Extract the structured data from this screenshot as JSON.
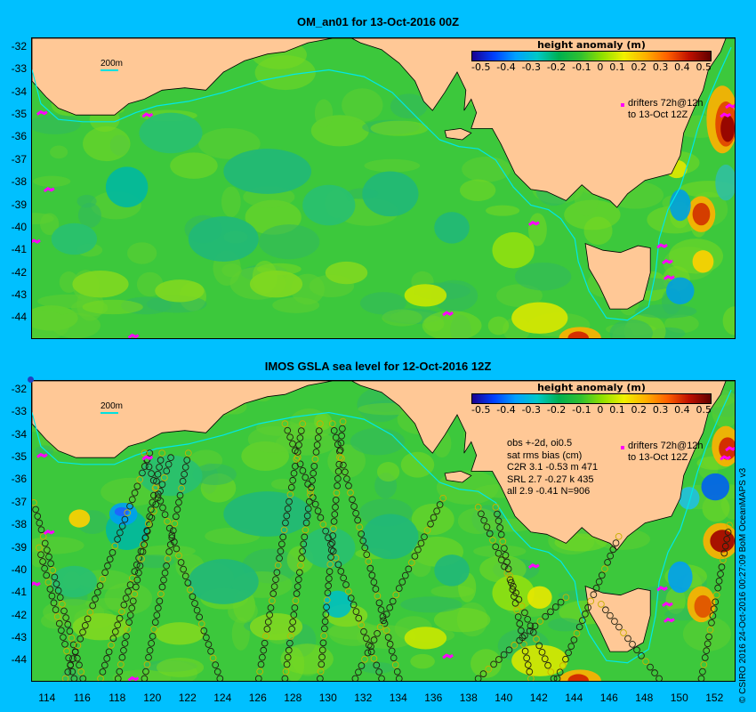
{
  "panels": [
    {
      "title": "OM_an01 for 13-Oct-2016 00Z",
      "has_tracks": false
    },
    {
      "title": "IMOS GSLA sea level  for 12-Oct-2016 12Z",
      "has_tracks": true,
      "stats": {
        "header1": "obs +-2d, oi0.5",
        "header2": "sat rms bias (cm)",
        "rows": [
          "C2R   3.1 -0.53 m 471",
          "SRL    2.7 -0.27 k 435",
          "all    2.9 -0.41 N=906"
        ]
      }
    }
  ],
  "colorbar": {
    "title": "height anomaly (m)",
    "ticks": [
      "-0.5",
      "-0.4",
      "-0.3",
      "-0.2",
      "-0.1",
      "0",
      "0.1",
      "0.2",
      "0.3",
      "0.4",
      "0.5"
    ],
    "range": [
      -0.5,
      0.5
    ]
  },
  "drifters_line1": "drifters 72h@12h",
  "drifters_line2": "to 13-Oct 12Z",
  "isobath_label": "200m",
  "y_axis": {
    "range": [
      -44.9,
      -31.6
    ],
    "ticks": [
      "-32",
      "-33",
      "-34",
      "-35",
      "-36",
      "-37",
      "-38",
      "-39",
      "-40",
      "-41",
      "-42",
      "-43",
      "-44"
    ]
  },
  "x_axis": {
    "range": [
      113.1,
      153.1
    ],
    "ticks": [
      "114",
      "116",
      "118",
      "120",
      "122",
      "124",
      "126",
      "128",
      "130",
      "132",
      "134",
      "136",
      "138",
      "140",
      "142",
      "144",
      "146",
      "148",
      "150",
      "152"
    ]
  },
  "copyright": "© CSIRO 2016  24-Oct-2016 00:27:09 BoM OceanMAPS v3",
  "colors": {
    "background": "#00c0ff",
    "land": "#ffc896",
    "ocean_base": "#3cc83c",
    "isobath": "#00e8e8",
    "drifter": "#ff00ff"
  }
}
